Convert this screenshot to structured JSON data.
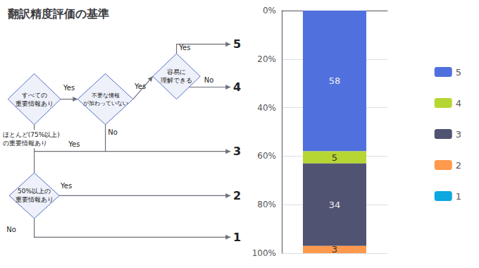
{
  "chart_data": {
    "type": "bar",
    "title": "翻訳精度評価の基準",
    "stacked": true,
    "categories": [
      null
    ],
    "series": [
      {
        "name": "5",
        "values": [
          58
        ]
      },
      {
        "name": "4",
        "values": [
          5
        ]
      },
      {
        "name": "3",
        "values": [
          34
        ]
      },
      {
        "name": "2",
        "values": [
          3
        ]
      },
      {
        "name": "1",
        "values": [
          0
        ]
      }
    ],
    "ylim": [
      100,
      0
    ],
    "yticks": [
      {
        "value": 0,
        "label": "0%"
      },
      {
        "value": 20,
        "label": "20%"
      },
      {
        "value": 40,
        "label": "40%"
      },
      {
        "value": 60,
        "label": "60%"
      },
      {
        "value": 80,
        "label": "80%"
      },
      {
        "value": 100,
        "label": "100%"
      }
    ],
    "grid": true,
    "legend": "right",
    "data_labels": true,
    "annotations": [
      "すべての\n重要情報あり",
      "不要な情報\nが加わっていない",
      "容易に\n理解できる",
      "ほとんど(75%以上)\nの重要情報あり",
      "50%以上の\n重要情報あり",
      "Yes",
      "Yes",
      "Yes",
      "No",
      "No",
      "Yes",
      "Yes",
      "No"
    ]
  }
}
